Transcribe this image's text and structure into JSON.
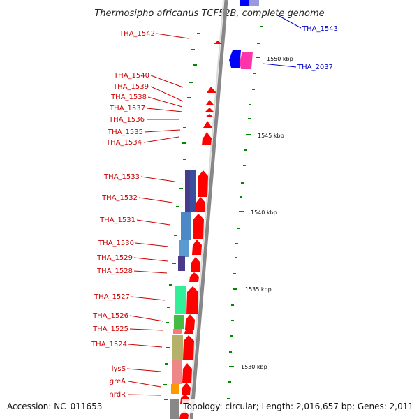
{
  "title": "Thermosipho africanus TCF52B, complete genome",
  "accession": "Accession: NC_011653",
  "topology": "Topology: circular; Length: 2,016,657 bp; Genes: 2,011",
  "colors": {
    "forward_gene": "#ff0000",
    "reverse_gene_blue": "#0000ff",
    "reverse_gene_pink": "#ff33aa",
    "backbone": "#888888",
    "tick": "#008800",
    "label_red": "#cc0000",
    "label_blue": "#0000cc"
  },
  "scale_labels": [
    "1550 kbp",
    "1545 kbp",
    "1540 kbp",
    "1535 kbp",
    "1530 kbp"
  ],
  "left_labels": [
    "THA_1542",
    "THA_1540",
    "THA_1539",
    "THA_1538",
    "THA_1537",
    "THA_1536",
    "THA_1535",
    "THA_1534",
    "THA_1533",
    "THA_1532",
    "THA_1531",
    "THA_1530",
    "THA_1529",
    "THA_1528",
    "THA_1527",
    "THA_1526",
    "THA_1525",
    "THA_1524",
    "lysS",
    "greA",
    "nrdR"
  ],
  "right_labels": [
    "THA_1543",
    "THA_2037"
  ],
  "feature_colors": [
    "#4a3a8a",
    "#3b4e9e",
    "#4a88c8",
    "#5a9ad0",
    "#4a3a8a",
    "#33ee99",
    "#44bb44",
    "#ff7777",
    "#b5b06a",
    "#ee8888",
    "#ff9900",
    "#888888"
  ]
}
